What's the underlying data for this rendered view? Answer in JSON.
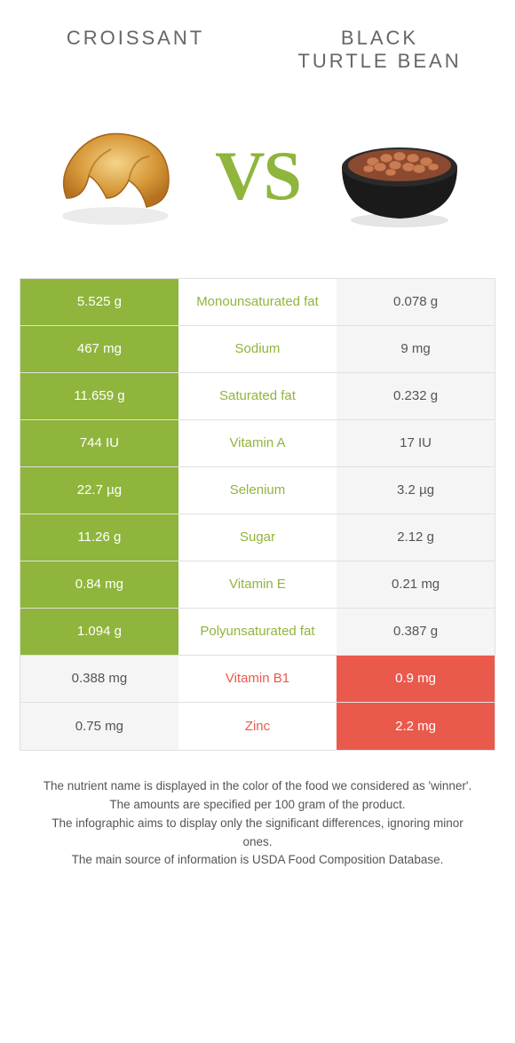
{
  "header": {
    "left_title": "Croissant",
    "right_title_line1": "Black",
    "right_title_line2": "turtle bean"
  },
  "vs_label": "VS",
  "colors": {
    "left": "#8FB53C",
    "right": "#E95A4C",
    "lose_bg": "#f5f5f5",
    "lose_text": "#555555",
    "title_text": "#666666",
    "footer_text": "#555555",
    "border": "#e0e0e0"
  },
  "rows": [
    {
      "left": "5.525 g",
      "label": "Monounsaturated fat",
      "right": "0.078 g",
      "winner": "left"
    },
    {
      "left": "467 mg",
      "label": "Sodium",
      "right": "9 mg",
      "winner": "left"
    },
    {
      "left": "11.659 g",
      "label": "Saturated fat",
      "right": "0.232 g",
      "winner": "left"
    },
    {
      "left": "744 IU",
      "label": "Vitamin A",
      "right": "17 IU",
      "winner": "left"
    },
    {
      "left": "22.7 µg",
      "label": "Selenium",
      "right": "3.2 µg",
      "winner": "left"
    },
    {
      "left": "11.26 g",
      "label": "Sugar",
      "right": "2.12 g",
      "winner": "left"
    },
    {
      "left": "0.84 mg",
      "label": "Vitamin E",
      "right": "0.21 mg",
      "winner": "left"
    },
    {
      "left": "1.094 g",
      "label": "Polyunsaturated fat",
      "right": "0.387 g",
      "winner": "left"
    },
    {
      "left": "0.388 mg",
      "label": "Vitamin B1",
      "right": "0.9 mg",
      "winner": "right"
    },
    {
      "left": "0.75 mg",
      "label": "Zinc",
      "right": "2.2 mg",
      "winner": "right"
    }
  ],
  "footer": {
    "line1": "The nutrient name is displayed in the color of the food we considered as 'winner'.",
    "line2": "The amounts are specified per 100 gram of the product.",
    "line3": "The infographic aims to display only the significant differences, ignoring minor ones.",
    "line4": "The main source of information is USDA Food Composition Database."
  }
}
